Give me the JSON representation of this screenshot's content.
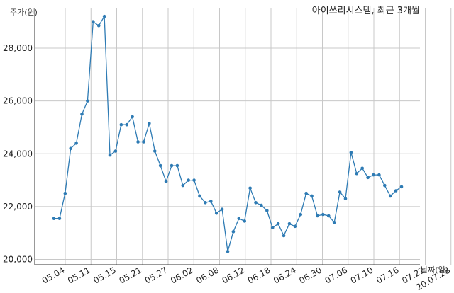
{
  "chart_data": {
    "type": "line",
    "title": "아이쓰리시스템, 최근 3개월",
    "ylabel": "주가(원)",
    "xlabel": "날짜(일)",
    "ylim": [
      19800,
      29500
    ],
    "grid": true,
    "color": "#2e7bb4",
    "yticks": [
      20000,
      22000,
      24000,
      26000,
      28000
    ],
    "ytick_labels": [
      "20,000",
      "22,000",
      "24,000",
      "26,000",
      "28,000"
    ],
    "xtick_labels": [
      "05.04",
      "05.11",
      "05.15",
      "05.21",
      "05.27",
      "06.02",
      "06.08",
      "06.12",
      "06.18",
      "06.24",
      "06.30",
      "07.06",
      "07.10",
      "07.16",
      "07.22",
      "20.07.28"
    ],
    "series": [
      {
        "x": [
          "2020-04-29",
          "2020-04-30",
          "2020-05-04",
          "2020-05-06",
          "2020-05-07",
          "2020-05-08",
          "2020-05-11",
          "2020-05-12",
          "2020-05-13",
          "2020-05-14",
          "2020-05-15",
          "2020-05-18",
          "2020-05-19",
          "2020-05-20",
          "2020-05-21",
          "2020-05-22",
          "2020-05-25",
          "2020-05-26",
          "2020-05-27",
          "2020-05-28",
          "2020-05-29",
          "2020-06-01",
          "2020-06-02",
          "2020-06-03",
          "2020-06-04",
          "2020-06-05",
          "2020-06-08",
          "2020-06-09",
          "2020-06-10",
          "2020-06-11",
          "2020-06-12",
          "2020-06-15",
          "2020-06-16",
          "2020-06-17",
          "2020-06-18",
          "2020-06-19",
          "2020-06-22",
          "2020-06-23",
          "2020-06-24",
          "2020-06-25",
          "2020-06-26",
          "2020-06-29",
          "2020-06-30",
          "2020-07-01",
          "2020-07-02",
          "2020-07-03",
          "2020-07-06",
          "2020-07-07",
          "2020-07-08",
          "2020-07-09",
          "2020-07-10",
          "2020-07-13",
          "2020-07-14",
          "2020-07-15",
          "2020-07-16",
          "2020-07-17",
          "2020-07-20",
          "2020-07-21",
          "2020-07-22",
          "2020-07-23",
          "2020-07-24",
          "2020-07-27",
          "2020-07-28"
        ],
        "y": [
          21550,
          21550,
          22500,
          24200,
          24400,
          25500,
          26000,
          29000,
          28850,
          29200,
          23950,
          24100,
          25100,
          25100,
          25400,
          24450,
          24450,
          25150,
          24100,
          23550,
          22950,
          23550,
          23550,
          22800,
          23000,
          23000,
          22400,
          22150,
          22200,
          21750,
          21900,
          20300,
          21050,
          21550,
          21450,
          22700,
          22150,
          22050,
          21850,
          21200,
          21350,
          20900,
          21350,
          21250,
          21700,
          22500,
          22400,
          21650,
          21700,
          21650,
          21400,
          22550,
          22300,
          24050,
          23250,
          23450,
          23100,
          23200,
          23200,
          22800,
          22400,
          22600,
          22750
        ]
      }
    ]
  }
}
